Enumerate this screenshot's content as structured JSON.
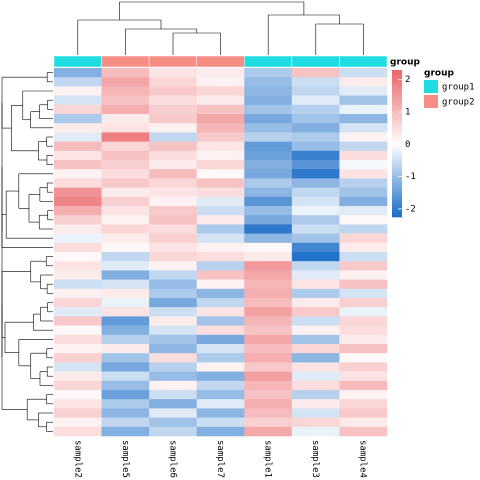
{
  "chart_data": {
    "type": "heatmap",
    "categories": [
      "sample2",
      "sample5",
      "sample6",
      "sample7",
      "sample1",
      "sample3",
      "sample4"
    ],
    "column_groups": [
      "group1",
      "group2",
      "group2",
      "group2",
      "group1",
      "group1",
      "group1"
    ],
    "annotation_title": "group",
    "annotation_legend": [
      {
        "name": "group1",
        "color": "#1edce0"
      },
      {
        "name": "group2",
        "color": "#f68e86"
      }
    ],
    "colorbar_title": "group",
    "zlim": [
      -2.25,
      2.3
    ],
    "zticks": [
      -2,
      -1,
      0,
      1,
      2
    ],
    "colors": {
      "low": "#1a6cc7",
      "mid": "#ffffff",
      "high": "#ec6a6e"
    },
    "values": [
      [
        -1.2,
        1.0,
        0.4,
        0.3,
        -0.8,
        0.9,
        -0.5
      ],
      [
        -0.6,
        1.3,
        0.6,
        0.2,
        -1.0,
        -0.5,
        0.3
      ],
      [
        0.2,
        1.1,
        0.8,
        0.6,
        -1.1,
        -0.6,
        -0.3
      ],
      [
        -0.4,
        0.9,
        0.5,
        0.3,
        -1.2,
        -0.3,
        -0.9
      ],
      [
        0.6,
        1.2,
        0.7,
        0.9,
        -0.9,
        -0.7,
        -0.2
      ],
      [
        -0.8,
        0.3,
        0.8,
        1.3,
        -1.3,
        -0.9,
        -1.1
      ],
      [
        0.3,
        0.4,
        0.2,
        1.1,
        -1.0,
        -1.2,
        -0.4
      ],
      [
        -0.3,
        1.9,
        -0.6,
        0.8,
        -0.7,
        -0.8,
        0.2
      ],
      [
        1.0,
        0.6,
        0.9,
        0.4,
        -1.5,
        -1.0,
        -0.6
      ],
      [
        0.4,
        0.9,
        0.5,
        0.2,
        -1.4,
        -1.9,
        0.5
      ],
      [
        0.9,
        0.7,
        0.3,
        0.6,
        -1.2,
        -1.6,
        -0.1
      ],
      [
        0.2,
        0.5,
        1.0,
        0.1,
        -1.3,
        -2.0,
        0.4
      ],
      [
        0.5,
        0.8,
        0.6,
        0.9,
        -0.8,
        -1.1,
        -0.7
      ],
      [
        1.6,
        0.3,
        0.4,
        0.5,
        -1.1,
        -0.6,
        -0.9
      ],
      [
        1.8,
        0.7,
        0.2,
        -0.3,
        -1.6,
        -0.4,
        -1.2
      ],
      [
        1.2,
        0.4,
        0.8,
        -0.5,
        -1.0,
        -0.2,
        -0.3
      ],
      [
        0.7,
        0.2,
        0.9,
        0.3,
        -1.3,
        -0.8,
        0.1
      ],
      [
        0.3,
        0.6,
        0.5,
        -0.8,
        -2.0,
        -0.5,
        -0.6
      ],
      [
        -0.2,
        0.3,
        0.7,
        -0.4,
        -1.1,
        -0.9,
        0.6
      ],
      [
        0.5,
        0.1,
        0.4,
        0.2,
        0.1,
        -1.8,
        0.3
      ],
      [
        0.1,
        -0.6,
        0.6,
        0.5,
        0.3,
        -2.1,
        -0.5
      ],
      [
        0.4,
        -0.3,
        0.2,
        -0.7,
        1.5,
        -0.6,
        0.8
      ],
      [
        0.3,
        -1.2,
        -0.6,
        0.9,
        1.3,
        -0.3,
        0.2
      ],
      [
        -0.5,
        -0.4,
        -1.0,
        0.2,
        1.1,
        0.4,
        0.9
      ],
      [
        0.2,
        0.3,
        -0.8,
        -1.1,
        1.2,
        -0.8,
        -0.4
      ],
      [
        0.6,
        -0.2,
        -1.3,
        -0.6,
        1.0,
        0.3,
        0.7
      ],
      [
        -0.3,
        0.4,
        -0.5,
        0.4,
        1.4,
        0.8,
        -0.2
      ],
      [
        0.8,
        -1.5,
        0.3,
        -0.9,
        1.1,
        -0.5,
        0.6
      ],
      [
        0.1,
        -1.2,
        -0.4,
        0.5,
        0.9,
        0.2,
        0.5
      ],
      [
        0.5,
        -0.7,
        -0.9,
        -1.3,
        1.3,
        -0.9,
        0.3
      ],
      [
        0.2,
        0.3,
        -1.1,
        -0.4,
        1.0,
        0.6,
        0.9
      ],
      [
        0.7,
        -0.9,
        0.5,
        -0.8,
        1.2,
        -1.1,
        0.1
      ],
      [
        -0.4,
        -1.3,
        -0.7,
        0.2,
        0.8,
        0.4,
        0.7
      ],
      [
        0.3,
        -0.5,
        -1.0,
        -1.2,
        1.4,
        -0.3,
        0.4
      ],
      [
        0.6,
        -1.0,
        0.2,
        -0.6,
        1.1,
        0.5,
        1.0
      ],
      [
        0.1,
        -1.4,
        -0.5,
        -1.0,
        0.9,
        -0.7,
        0.2
      ],
      [
        0.4,
        -0.8,
        -1.2,
        -0.3,
        1.2,
        0.3,
        0.6
      ],
      [
        0.7,
        -1.1,
        -0.3,
        -1.1,
        1.0,
        -0.4,
        0.8
      ],
      [
        0.2,
        -0.6,
        -0.9,
        -0.5,
        0.7,
        0.6,
        0.3
      ],
      [
        0.5,
        -1.2,
        -0.6,
        -1.2,
        1.3,
        -0.2,
        0.9
      ]
    ]
  }
}
